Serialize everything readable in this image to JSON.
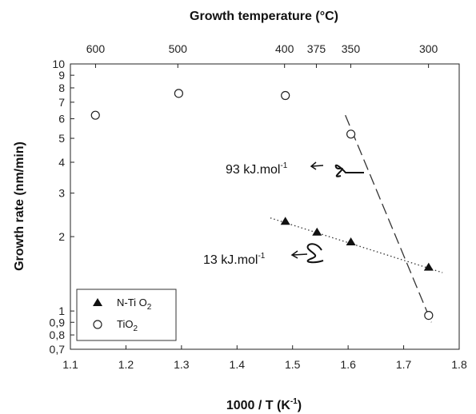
{
  "chart_data": {
    "type": "scatter",
    "x_axis": {
      "label_main": "1000 / T (K",
      "label_sup": "-1",
      "label_end": ")",
      "range": [
        1.1,
        1.8
      ],
      "ticks": [
        1.1,
        1.2,
        1.3,
        1.4,
        1.5,
        1.6,
        1.7,
        1.8
      ],
      "tick_labels": [
        "1.1",
        "1.2",
        "1.3",
        "1.4",
        "1.5",
        "1.6",
        "1.7",
        "1.8"
      ]
    },
    "top_axis": {
      "label": "Growth temperature (°C)",
      "ticks_celsius": [
        600,
        500,
        400,
        375,
        350,
        300
      ],
      "tick_labels": [
        "600",
        "500",
        "400",
        "375",
        "350",
        "300"
      ]
    },
    "y_axis": {
      "label": "Growth rate (nm/min)",
      "scale": "log",
      "range": [
        0.7,
        10
      ],
      "ticks": [
        0.7,
        0.8,
        0.9,
        1,
        2,
        3,
        4,
        5,
        6,
        7,
        8,
        9,
        10
      ],
      "tick_labels": [
        "0,7",
        "0,8",
        "0,9",
        "1",
        "2",
        "3",
        "4",
        "5",
        "6",
        "7",
        "8",
        "9",
        "10"
      ]
    },
    "series": [
      {
        "name": "N-TiO2",
        "marker": "filled-triangle",
        "x": [
          1.487,
          1.544,
          1.605,
          1.745
        ],
        "y": [
          2.3,
          2.08,
          1.9,
          1.5
        ],
        "fit_line": {
          "style": "dotted",
          "x": [
            1.46,
            1.77
          ],
          "y": [
            2.38,
            1.43
          ]
        }
      },
      {
        "name": "TiO2",
        "marker": "open-circle",
        "x": [
          1.145,
          1.295,
          1.487,
          1.605,
          1.745
        ],
        "y": [
          6.2,
          7.6,
          7.45,
          5.2,
          0.96
        ],
        "fit_line": {
          "style": "dashed",
          "x": [
            1.595,
            1.75
          ],
          "y": [
            6.2,
            0.9
          ]
        }
      }
    ],
    "annotations": [
      {
        "text_main": "93 kJ.mol",
        "text_sup": "-1",
        "target_series": "TiO2"
      },
      {
        "text_main": "13 kJ.mol",
        "text_sup": "-1",
        "target_series": "N-TiO2"
      }
    ],
    "legend": {
      "placement": "bottom-left",
      "entries": [
        {
          "label_main": "N-Ti O",
          "label_sub": "2",
          "marker": "filled-triangle"
        },
        {
          "label_main": "TiO",
          "label_sub": "2",
          "marker": "open-circle"
        }
      ]
    },
    "grid": false
  }
}
